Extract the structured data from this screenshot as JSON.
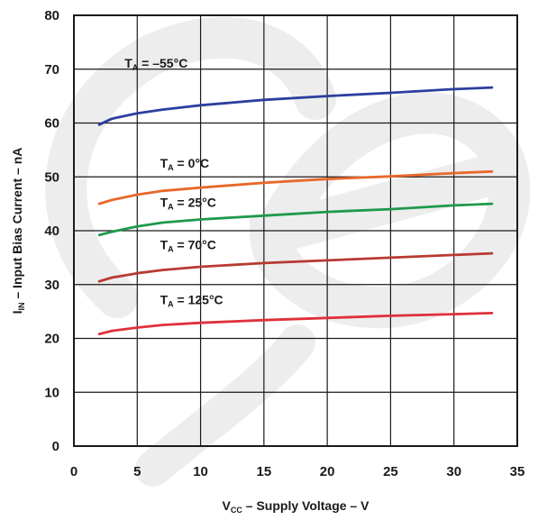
{
  "chart_data": {
    "type": "line",
    "title": "",
    "xlabel": {
      "main": "V",
      "sub": "CC",
      "rest": " – Supply Voltage – V"
    },
    "ylabel": {
      "main": "I",
      "sub": "IN",
      "rest": " – Input Bias Current – nA"
    },
    "xlim": [
      0,
      35
    ],
    "ylim": [
      0,
      80
    ],
    "xticks": [
      "0",
      "5",
      "10",
      "15",
      "20",
      "25",
      "30",
      "35"
    ],
    "yticks": [
      "0",
      "10",
      "20",
      "30",
      "40",
      "50",
      "60",
      "70",
      "80"
    ],
    "grid": true,
    "series": [
      {
        "name": "T",
        "sub": "A",
        "cond": " = –55°C",
        "color": "#2b3f9e",
        "x": [
          2,
          3,
          5,
          7,
          10,
          15,
          20,
          25,
          30,
          33
        ],
        "y": [
          59.7,
          60.8,
          61.8,
          62.5,
          63.3,
          64.3,
          65.0,
          65.6,
          66.3,
          66.6
        ]
      },
      {
        "name": "T",
        "sub": "A",
        "cond": " = 0°C",
        "color": "#e8682a",
        "x": [
          2,
          3,
          5,
          7,
          10,
          15,
          20,
          25,
          30,
          33
        ],
        "y": [
          45.0,
          45.7,
          46.7,
          47.4,
          48.0,
          48.9,
          49.6,
          50.1,
          50.7,
          51.0
        ]
      },
      {
        "name": "T",
        "sub": "A",
        "cond": " = 25°C",
        "color": "#1e9a4a",
        "x": [
          2,
          3,
          5,
          7,
          10,
          15,
          20,
          25,
          30,
          33
        ],
        "y": [
          39.2,
          39.8,
          40.8,
          41.5,
          42.1,
          42.8,
          43.5,
          44.0,
          44.7,
          45.0
        ]
      },
      {
        "name": "T",
        "sub": "A",
        "cond": " = 70°C",
        "color": "#b83a32",
        "x": [
          2,
          3,
          5,
          7,
          10,
          15,
          20,
          25,
          30,
          33
        ],
        "y": [
          30.6,
          31.3,
          32.1,
          32.7,
          33.3,
          34.0,
          34.5,
          35.0,
          35.5,
          35.8
        ]
      },
      {
        "name": "T",
        "sub": "A",
        "cond": " = 125°C",
        "color": "#e0303a",
        "x": [
          2,
          3,
          5,
          7,
          10,
          15,
          20,
          25,
          30,
          33
        ],
        "y": [
          20.8,
          21.4,
          22.0,
          22.5,
          22.9,
          23.4,
          23.8,
          24.2,
          24.5,
          24.7
        ]
      }
    ]
  }
}
